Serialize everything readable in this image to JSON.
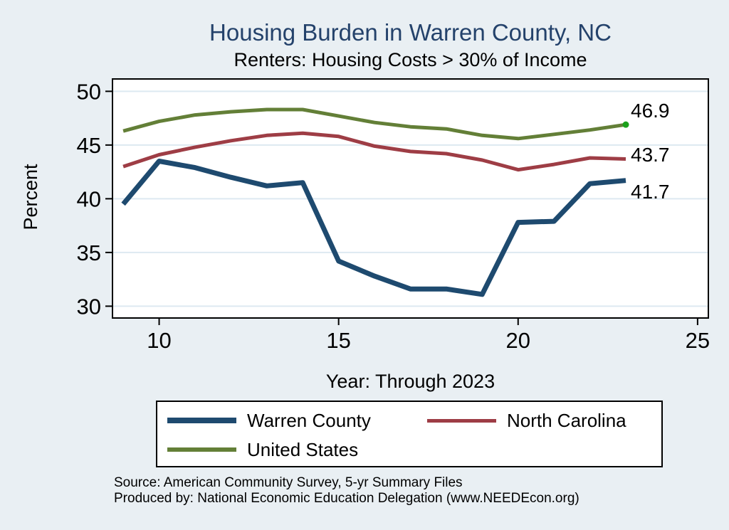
{
  "colors": {
    "title_text": "#24426b",
    "background": "#e9eff3",
    "plot_background": "#ffffff",
    "gridline": "#dde9f1",
    "axis": "#000000",
    "warren_county": "#1e4a6f",
    "north_carolina": "#9e3d45",
    "united_states": "#637f37",
    "us_end_marker": "#1ba11b"
  },
  "chart_data": {
    "type": "line",
    "title": "Housing Burden in Warren County, NC",
    "subtitle": "Renters: Housing Costs > 30% of Income",
    "xlabel": "Year: Through 2023",
    "ylabel": "Percent",
    "x": [
      9,
      10,
      11,
      12,
      13,
      14,
      15,
      16,
      17,
      18,
      19,
      20,
      21,
      22,
      23
    ],
    "xticks": [
      10,
      15,
      20,
      25
    ],
    "yticks": [
      30,
      35,
      40,
      45,
      50
    ],
    "xlim": [
      8.7,
      25.3
    ],
    "ylim": [
      28.9,
      51.15
    ],
    "grid": "horizontal",
    "legend_position": "below-plot",
    "series": [
      {
        "name": "Warren County",
        "color": "#1e4a6f",
        "line_width": 7,
        "end_label": "41.7",
        "end_marker": false,
        "values": [
          39.5,
          43.5,
          42.9,
          42.0,
          41.2,
          41.5,
          34.2,
          32.8,
          31.6,
          31.6,
          31.1,
          37.8,
          37.9,
          41.4,
          41.7
        ]
      },
      {
        "name": "North Carolina",
        "color": "#9e3d45",
        "line_width": 5,
        "end_label": "43.7",
        "end_marker": false,
        "values": [
          43.0,
          44.1,
          44.8,
          45.4,
          45.9,
          46.1,
          45.8,
          44.9,
          44.4,
          44.2,
          43.6,
          42.7,
          43.2,
          43.8,
          43.7
        ]
      },
      {
        "name": "United States",
        "color": "#637f37",
        "line_width": 5,
        "end_label": "46.9",
        "end_marker": true,
        "values": [
          46.3,
          47.2,
          47.8,
          48.1,
          48.3,
          48.3,
          47.7,
          47.1,
          46.7,
          46.5,
          45.9,
          45.6,
          46.0,
          46.4,
          46.9
        ]
      }
    ]
  },
  "legend": {
    "items": [
      {
        "label": "Warren County",
        "color": "#1e4a6f",
        "swatch_height": 8
      },
      {
        "label": "North Carolina",
        "color": "#9e3d45",
        "swatch_height": 5
      },
      {
        "label": "United States",
        "color": "#637f37",
        "swatch_height": 6
      }
    ]
  },
  "footer": {
    "source": "Source: American Community Survey, 5-yr Summary Files",
    "produced_by": "Produced by: National Economic Education Delegation (www.NEEDEcon.org)"
  }
}
